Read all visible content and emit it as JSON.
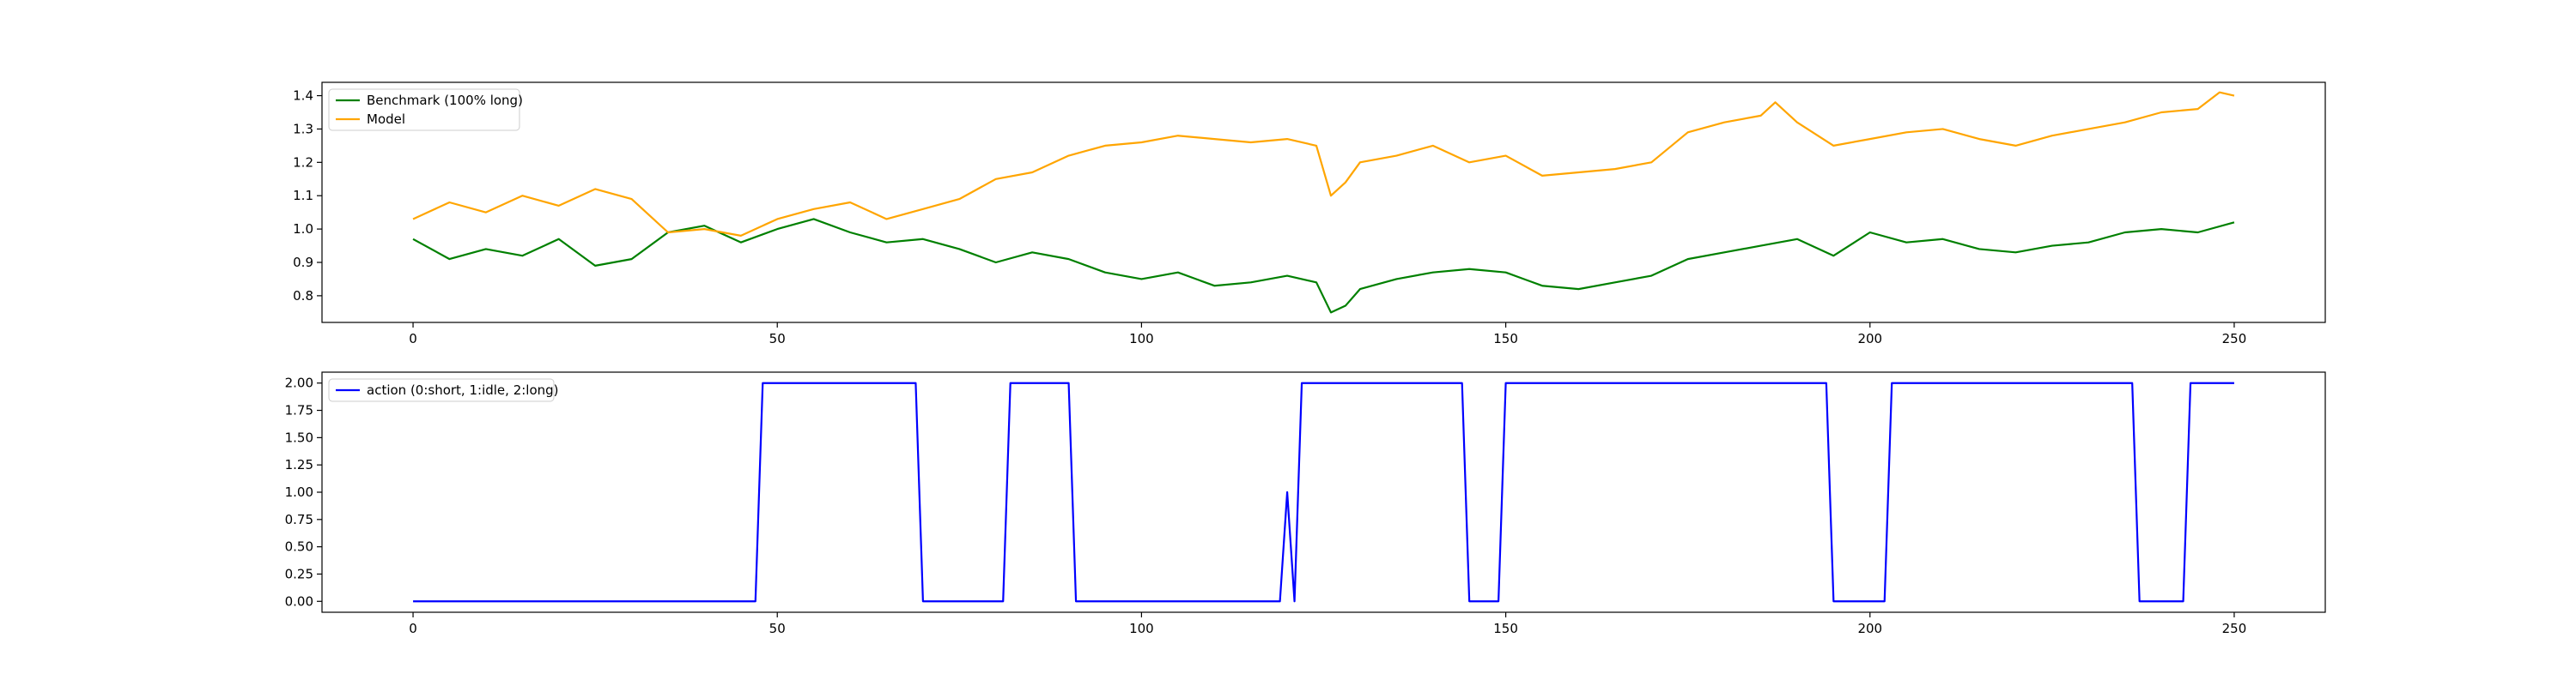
{
  "chart_data": [
    {
      "type": "line",
      "title": "",
      "xlabel": "",
      "ylabel": "",
      "xlim": [
        -12.5,
        262.5
      ],
      "ylim": [
        0.72,
        1.44
      ],
      "xticks": [
        0,
        50,
        100,
        150,
        200,
        250
      ],
      "xtick_labels": [
        "0",
        "50",
        "100",
        "150",
        "200",
        "250"
      ],
      "yticks": [
        0.8,
        0.9,
        1.0,
        1.1,
        1.2,
        1.3,
        1.4
      ],
      "ytick_labels": [
        "0.8",
        "0.9",
        "1.0",
        "1.1",
        "1.2",
        "1.3",
        "1.4"
      ],
      "grid": false,
      "legend_position": "top-left",
      "series": [
        {
          "name": "Benchmark (100% long)",
          "color": "#008000",
          "points": [
            [
              0,
              0.97
            ],
            [
              5,
              0.91
            ],
            [
              10,
              0.94
            ],
            [
              15,
              0.92
            ],
            [
              20,
              0.97
            ],
            [
              25,
              0.89
            ],
            [
              30,
              0.91
            ],
            [
              35,
              0.99
            ],
            [
              40,
              1.01
            ],
            [
              45,
              0.96
            ],
            [
              50,
              1.0
            ],
            [
              55,
              1.03
            ],
            [
              60,
              0.99
            ],
            [
              65,
              0.96
            ],
            [
              70,
              0.97
            ],
            [
              75,
              0.94
            ],
            [
              80,
              0.9
            ],
            [
              85,
              0.93
            ],
            [
              90,
              0.91
            ],
            [
              95,
              0.87
            ],
            [
              100,
              0.85
            ],
            [
              105,
              0.87
            ],
            [
              110,
              0.83
            ],
            [
              115,
              0.84
            ],
            [
              120,
              0.86
            ],
            [
              124,
              0.84
            ],
            [
              126,
              0.75
            ],
            [
              128,
              0.77
            ],
            [
              130,
              0.82
            ],
            [
              135,
              0.85
            ],
            [
              140,
              0.87
            ],
            [
              145,
              0.88
            ],
            [
              150,
              0.87
            ],
            [
              155,
              0.83
            ],
            [
              160,
              0.82
            ],
            [
              165,
              0.84
            ],
            [
              170,
              0.86
            ],
            [
              175,
              0.91
            ],
            [
              180,
              0.93
            ],
            [
              185,
              0.95
            ],
            [
              190,
              0.97
            ],
            [
              195,
              0.92
            ],
            [
              200,
              0.99
            ],
            [
              205,
              0.96
            ],
            [
              210,
              0.97
            ],
            [
              215,
              0.94
            ],
            [
              220,
              0.93
            ],
            [
              225,
              0.95
            ],
            [
              230,
              0.96
            ],
            [
              235,
              0.99
            ],
            [
              240,
              1.0
            ],
            [
              245,
              0.99
            ],
            [
              250,
              1.02
            ]
          ]
        },
        {
          "name": "Model",
          "color": "#FFA500",
          "points": [
            [
              0,
              1.03
            ],
            [
              5,
              1.08
            ],
            [
              10,
              1.05
            ],
            [
              15,
              1.1
            ],
            [
              20,
              1.07
            ],
            [
              25,
              1.12
            ],
            [
              30,
              1.09
            ],
            [
              35,
              0.99
            ],
            [
              40,
              1.0
            ],
            [
              45,
              0.98
            ],
            [
              50,
              1.03
            ],
            [
              55,
              1.06
            ],
            [
              60,
              1.08
            ],
            [
              65,
              1.03
            ],
            [
              70,
              1.06
            ],
            [
              75,
              1.09
            ],
            [
              80,
              1.15
            ],
            [
              85,
              1.17
            ],
            [
              90,
              1.22
            ],
            [
              95,
              1.25
            ],
            [
              100,
              1.26
            ],
            [
              105,
              1.28
            ],
            [
              110,
              1.27
            ],
            [
              115,
              1.26
            ],
            [
              120,
              1.27
            ],
            [
              124,
              1.25
            ],
            [
              126,
              1.1
            ],
            [
              128,
              1.14
            ],
            [
              130,
              1.2
            ],
            [
              135,
              1.22
            ],
            [
              140,
              1.25
            ],
            [
              145,
              1.2
            ],
            [
              150,
              1.22
            ],
            [
              155,
              1.16
            ],
            [
              160,
              1.17
            ],
            [
              165,
              1.18
            ],
            [
              170,
              1.2
            ],
            [
              175,
              1.29
            ],
            [
              180,
              1.32
            ],
            [
              185,
              1.34
            ],
            [
              187,
              1.38
            ],
            [
              190,
              1.32
            ],
            [
              195,
              1.25
            ],
            [
              200,
              1.27
            ],
            [
              205,
              1.29
            ],
            [
              210,
              1.3
            ],
            [
              215,
              1.27
            ],
            [
              220,
              1.25
            ],
            [
              225,
              1.28
            ],
            [
              230,
              1.3
            ],
            [
              235,
              1.32
            ],
            [
              240,
              1.35
            ],
            [
              245,
              1.36
            ],
            [
              248,
              1.41
            ],
            [
              250,
              1.4
            ]
          ]
        }
      ]
    },
    {
      "type": "line",
      "title": "",
      "xlabel": "",
      "ylabel": "",
      "xlim": [
        -12.5,
        262.5
      ],
      "ylim": [
        -0.1,
        2.1
      ],
      "xticks": [
        0,
        50,
        100,
        150,
        200,
        250
      ],
      "xtick_labels": [
        "0",
        "50",
        "100",
        "150",
        "200",
        "250"
      ],
      "yticks": [
        0,
        0.25,
        0.5,
        0.75,
        1.0,
        1.25,
        1.5,
        1.75,
        2.0
      ],
      "ytick_labels": [
        "0.00",
        "0.25",
        "0.50",
        "0.75",
        "1.00",
        "1.25",
        "1.50",
        "1.75",
        "2.00"
      ],
      "grid": false,
      "legend_position": "top-left",
      "series": [
        {
          "name": "action (0:short, 1:idle, 2:long)",
          "color": "#0000FF",
          "points": [
            [
              0,
              0
            ],
            [
              47,
              0
            ],
            [
              48,
              2
            ],
            [
              69,
              2
            ],
            [
              70,
              0
            ],
            [
              81,
              0
            ],
            [
              82,
              2
            ],
            [
              90,
              2
            ],
            [
              91,
              0
            ],
            [
              119,
              0
            ],
            [
              120,
              1
            ],
            [
              121,
              0
            ],
            [
              122,
              2
            ],
            [
              144,
              2
            ],
            [
              145,
              0
            ],
            [
              149,
              0
            ],
            [
              150,
              2
            ],
            [
              194,
              2
            ],
            [
              195,
              0
            ],
            [
              202,
              0
            ],
            [
              203,
              2
            ],
            [
              236,
              2
            ],
            [
              237,
              0
            ],
            [
              243,
              0
            ],
            [
              244,
              2
            ],
            [
              250,
              2
            ]
          ]
        }
      ]
    }
  ]
}
